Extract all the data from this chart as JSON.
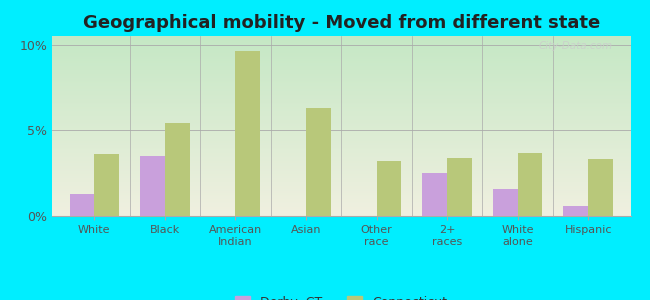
{
  "title": "Geographical mobility - Moved from different state",
  "categories": [
    "White",
    "Black",
    "American\nIndian",
    "Asian",
    "Other\nrace",
    "2+\nraces",
    "White\nalone",
    "Hispanic"
  ],
  "derby_ct": [
    1.3,
    3.5,
    0.0,
    0.0,
    0.0,
    2.5,
    1.6,
    0.6
  ],
  "connecticut": [
    3.6,
    5.4,
    9.6,
    6.3,
    3.2,
    3.4,
    3.7,
    3.3
  ],
  "derby_color": "#c9a0dc",
  "connecticut_color": "#b8c87a",
  "bg_outer": "#00eeff",
  "ylim": [
    0,
    10.5
  ],
  "yticks": [
    0,
    5,
    10
  ],
  "ytick_labels": [
    "0%",
    "5%",
    "10%"
  ],
  "bar_width": 0.35,
  "title_fontsize": 13,
  "watermark": "City-Data.com",
  "gradient_top": "#c5e8c5",
  "gradient_bottom": "#f0f0e0"
}
